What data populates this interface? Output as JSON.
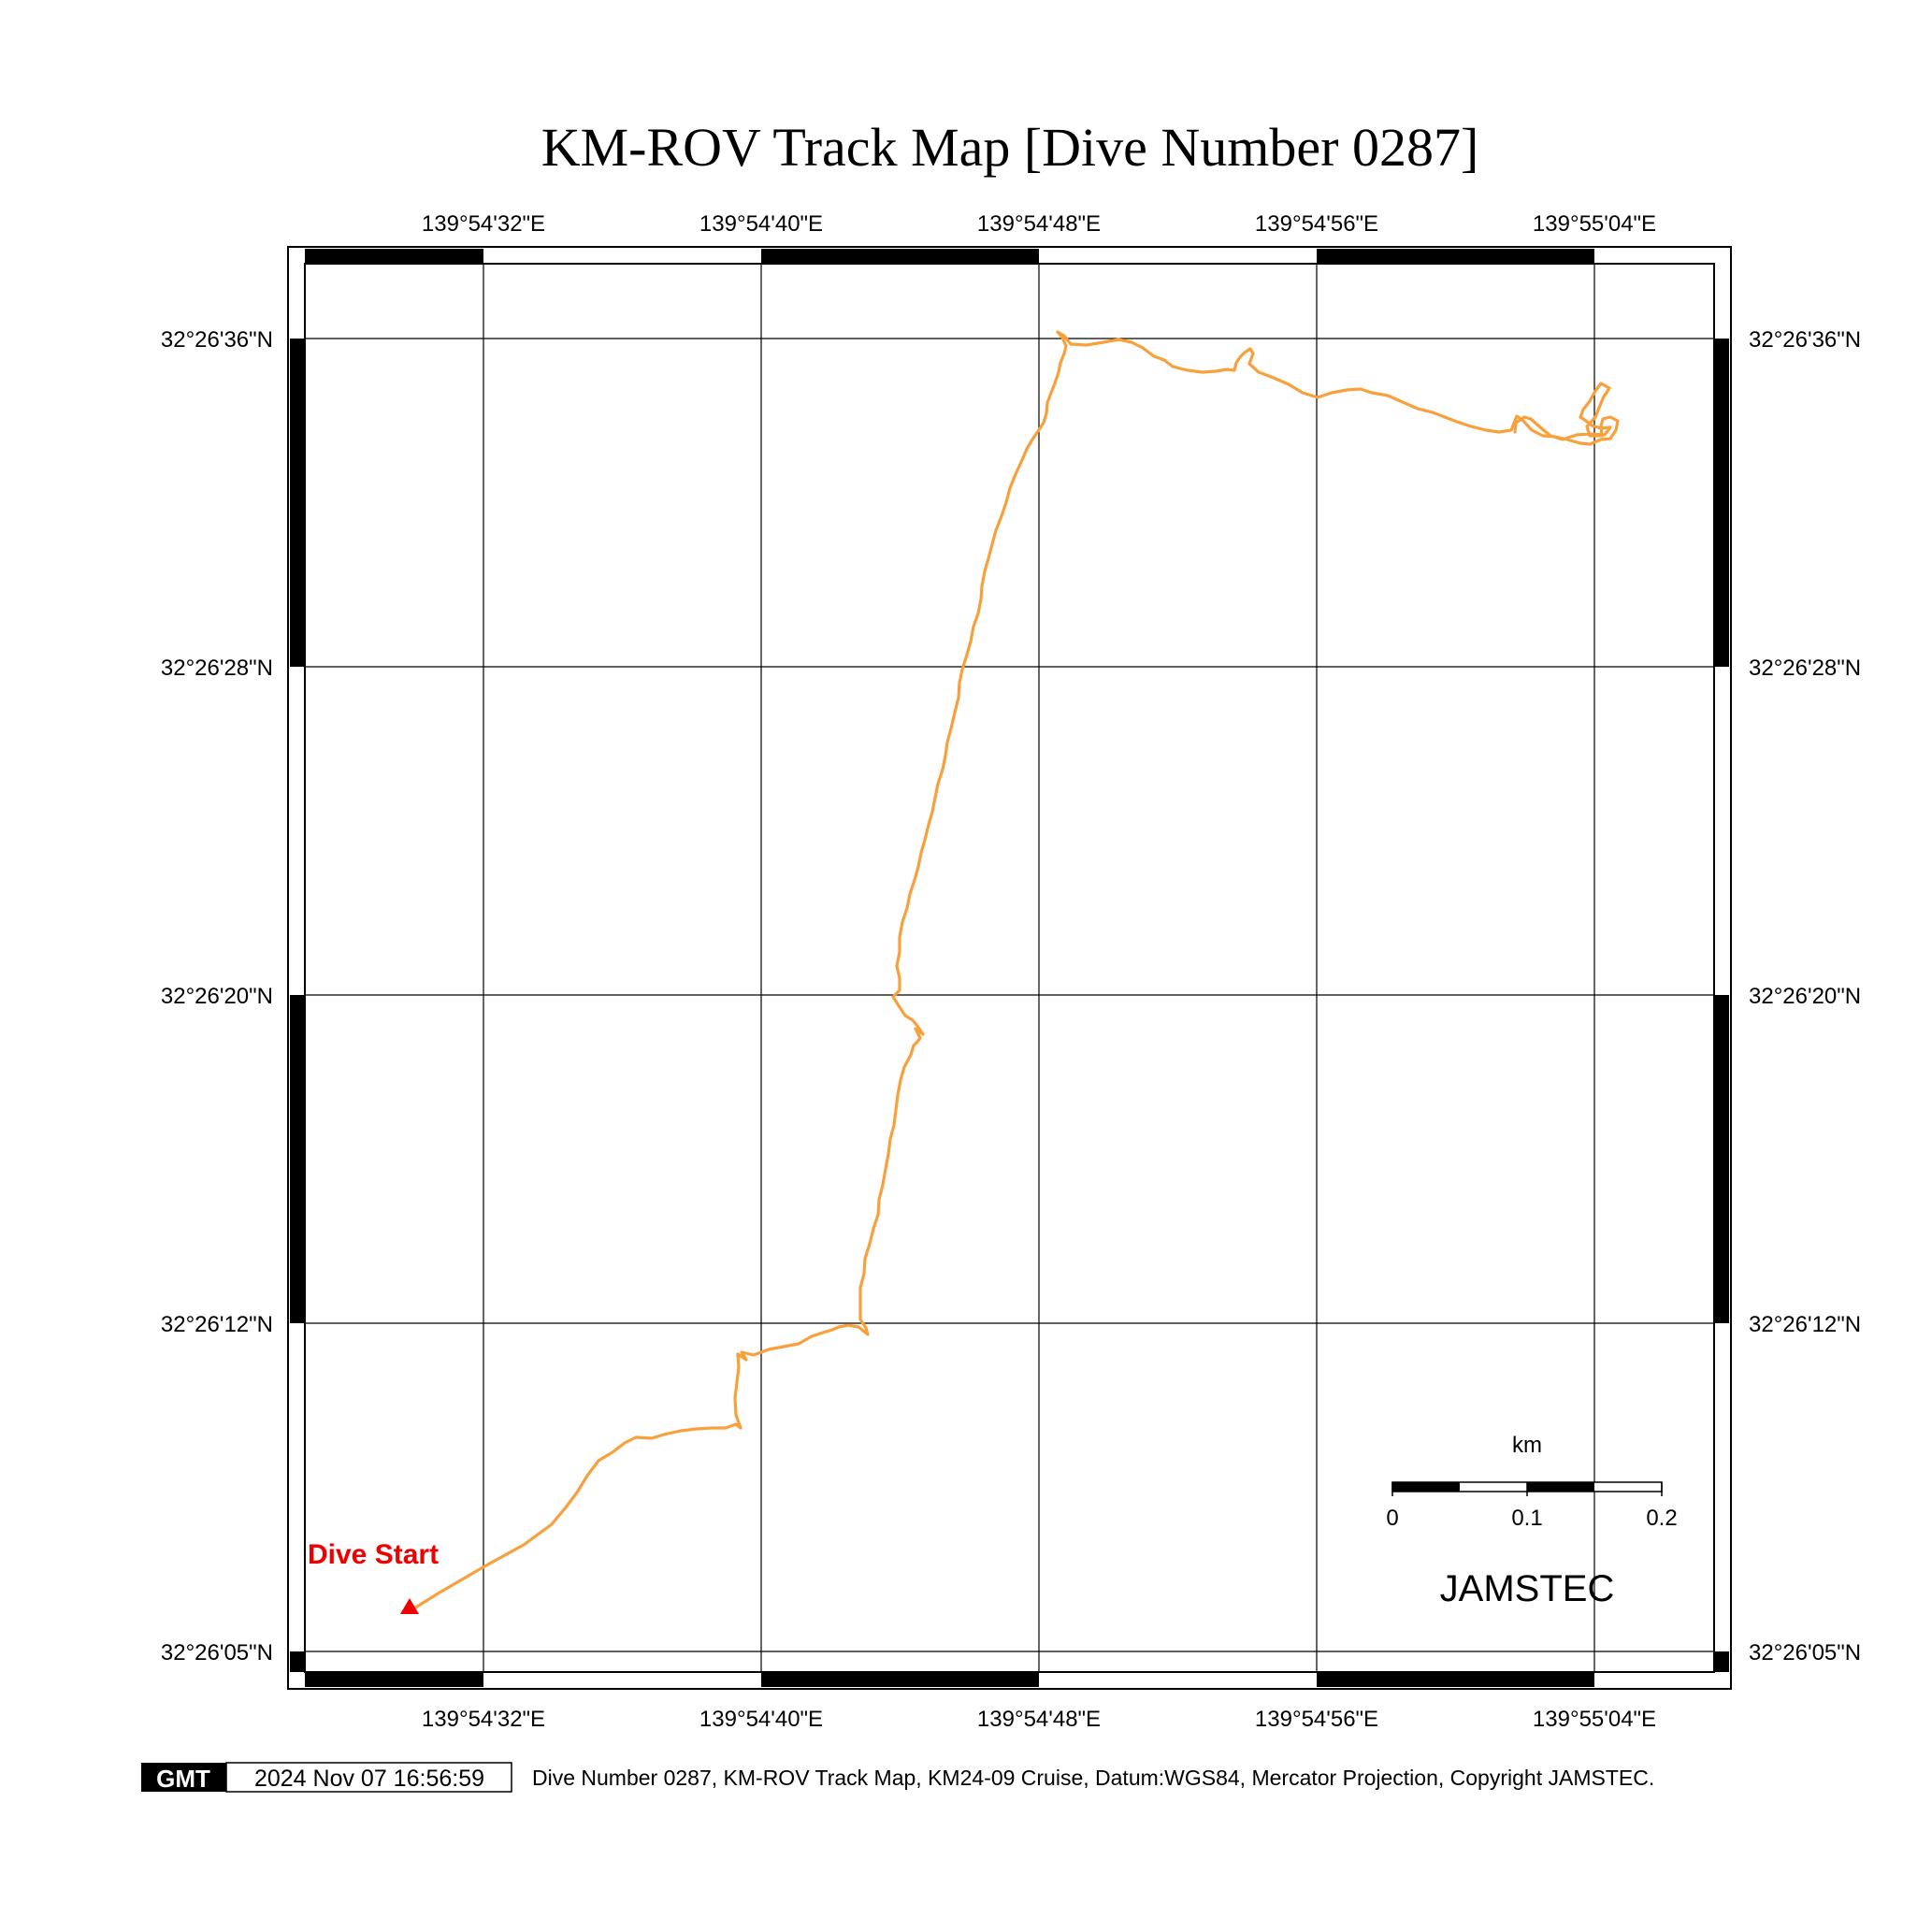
{
  "title": "KM-ROV Track Map [Dive Number 0287]",
  "axes": {
    "lon_labels": [
      "139°54'32\"E",
      "139°54'40\"E",
      "139°54'48\"E",
      "139°54'56\"E",
      "139°55'04\"E"
    ],
    "lat_labels": [
      "32°26'36\"N",
      "32°26'28\"N",
      "32°26'20\"N",
      "32°26'12\"N",
      "32°26'05\"N"
    ]
  },
  "track": {
    "color": "#f7a03c",
    "start_label": "Dive Start",
    "start_color": "#ee0000"
  },
  "scale_bar": {
    "unit": "km",
    "ticks": [
      "0",
      "0.1",
      "0.2"
    ]
  },
  "org_label": "JAMSTEC",
  "footer": {
    "logo_text": "GMT",
    "timestamp": "2024 Nov 07 16:56:59",
    "caption": "Dive Number 0287, KM-ROV Track Map, KM24-09 Cruise, Datum:WGS84, Mercator Projection, Copyright JAMSTEC."
  }
}
